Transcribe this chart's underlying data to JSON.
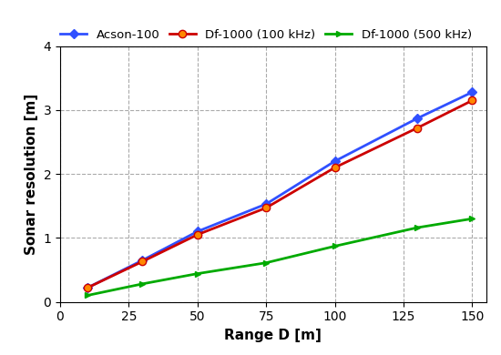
{
  "series": [
    {
      "label": "Acson-100",
      "color": "#3050ff",
      "marker": "D",
      "markersize": 5,
      "markerfacecolor": "#3050ff",
      "markeredgecolor": "#3050ff",
      "x": [
        10,
        30,
        50,
        75,
        100,
        130,
        150
      ],
      "y": [
        0.22,
        0.65,
        1.1,
        1.53,
        2.2,
        2.87,
        3.28
      ]
    },
    {
      "label": "Df-1000 (100 kHz)",
      "color": "#cc0000",
      "marker": "o",
      "markersize": 6,
      "markerfacecolor": "#ff8800",
      "markeredgecolor": "#cc0000",
      "x": [
        10,
        30,
        50,
        75,
        100,
        130,
        150
      ],
      "y": [
        0.22,
        0.63,
        1.05,
        1.47,
        2.1,
        2.72,
        3.15
      ]
    },
    {
      "label": "Df-1000 (500 kHz)",
      "color": "#00aa00",
      "marker": ">",
      "markersize": 5,
      "markerfacecolor": "#00aa00",
      "markeredgecolor": "#00aa00",
      "x": [
        10,
        30,
        50,
        75,
        100,
        130,
        150
      ],
      "y": [
        0.1,
        0.28,
        0.44,
        0.61,
        0.87,
        1.16,
        1.3
      ]
    }
  ],
  "xlabel": "Range D [m]",
  "ylabel": "Sonar resolution [m]",
  "xlim": [
    0,
    155
  ],
  "ylim": [
    0,
    4
  ],
  "xticks": [
    0,
    25,
    50,
    75,
    100,
    125,
    150
  ],
  "yticks": [
    0,
    1,
    2,
    3,
    4
  ],
  "fig_width": 5.5,
  "fig_height": 3.9,
  "dpi": 100,
  "bg_color": "#ffffff",
  "axes_bg_color": "#ffffff",
  "grid_color": "#aaaaaa",
  "grid_linestyle": "--",
  "label_fontsize": 11,
  "tick_fontsize": 10,
  "legend_fontsize": 9.5,
  "linewidth": 2.0
}
